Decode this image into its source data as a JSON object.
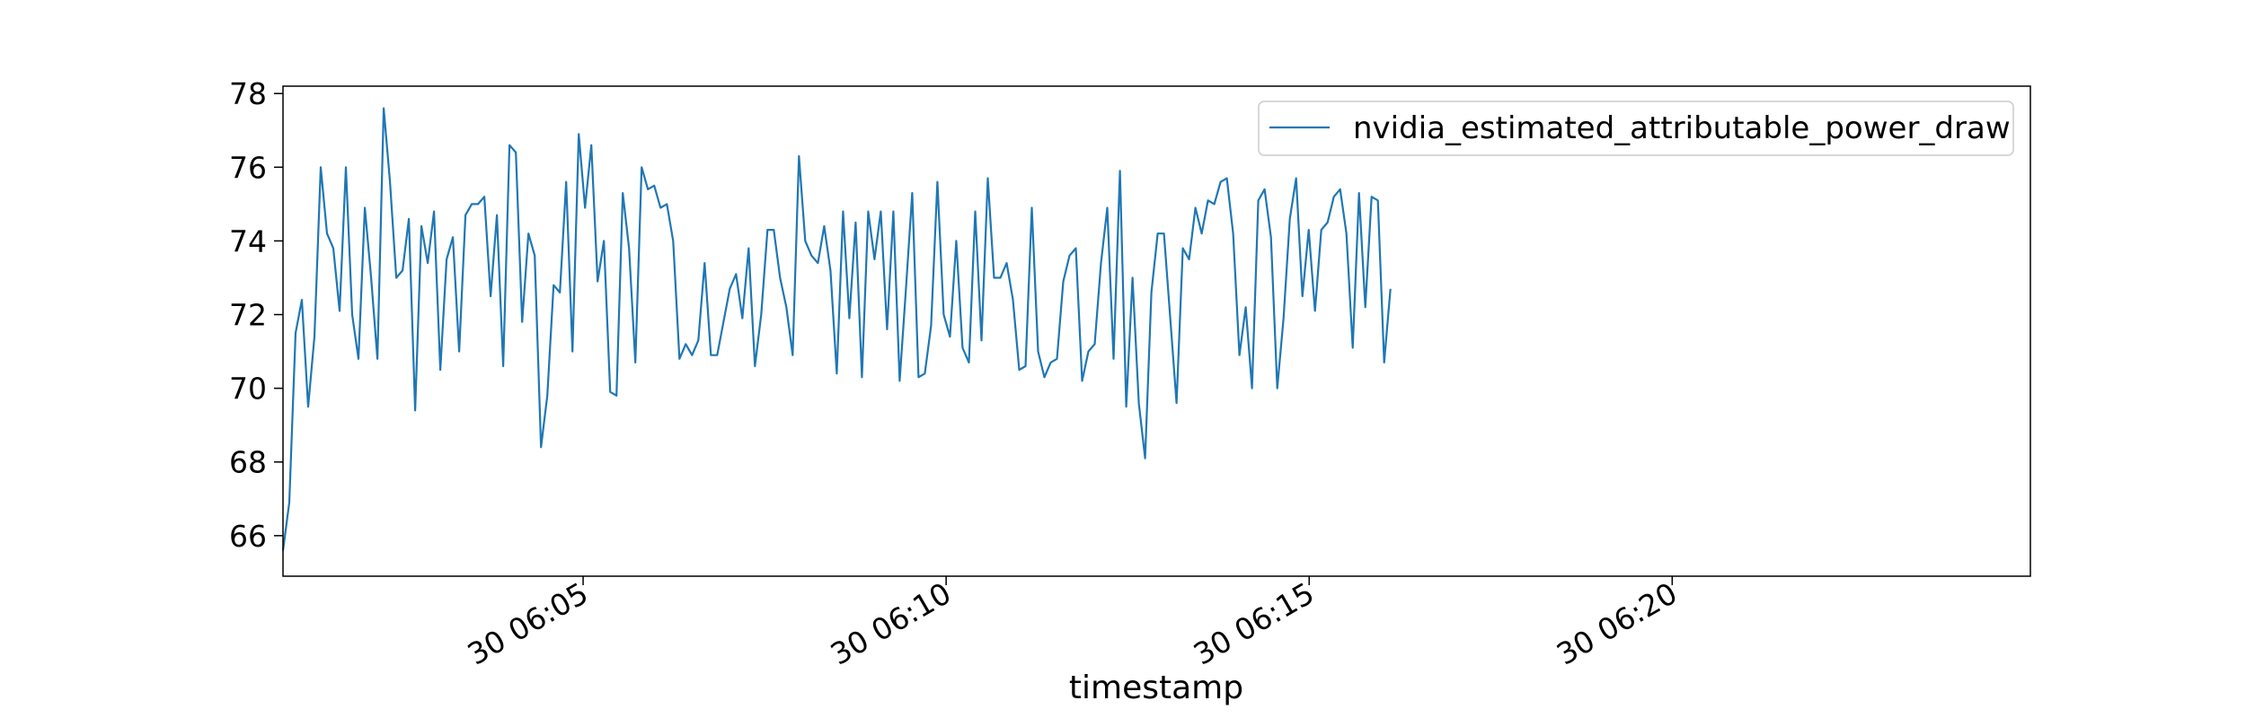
{
  "chart_data": {
    "type": "line",
    "title": "",
    "xlabel": "timestamp",
    "ylabel": "",
    "x_start": "30 06:00:52",
    "x_step_seconds": 5.2,
    "xlim": [
      "30 06:00:52",
      "30 06:24:56"
    ],
    "ylim": [
      64.9,
      78.2
    ],
    "y_ticks": [
      66,
      68,
      70,
      72,
      74,
      76,
      78
    ],
    "x_ticks": [
      {
        "time": "30 06:05",
        "label": "30 06:05"
      },
      {
        "time": "30 06:10",
        "label": "30 06:10"
      },
      {
        "time": "30 06:15",
        "label": "30 06:15"
      },
      {
        "time": "30 06:20",
        "label": "30 06:20"
      }
    ],
    "grid": false,
    "legend_position": "top-right",
    "series": [
      {
        "name": "nvidia_estimated_attributable_power_draw",
        "color": "#1f77b4",
        "values": [
          65.6,
          66.9,
          71.5,
          72.4,
          69.5,
          71.4,
          76.0,
          74.2,
          73.8,
          72.1,
          76.0,
          72.0,
          70.8,
          74.9,
          73.0,
          70.8,
          77.6,
          75.6,
          73.0,
          73.2,
          74.6,
          69.4,
          74.4,
          73.4,
          74.8,
          70.5,
          73.5,
          74.1,
          71.0,
          74.7,
          75.0,
          75.0,
          75.2,
          72.5,
          74.7,
          70.6,
          76.6,
          76.4,
          71.8,
          74.2,
          73.6,
          68.4,
          69.8,
          72.8,
          72.6,
          75.6,
          71.0,
          76.9,
          74.9,
          76.6,
          72.9,
          74.0,
          69.9,
          69.8,
          75.3,
          73.8,
          70.7,
          76.0,
          75.4,
          75.5,
          74.9,
          75.0,
          74.0,
          70.8,
          71.2,
          70.9,
          71.3,
          73.4,
          70.9,
          70.9,
          71.8,
          72.7,
          73.1,
          71.9,
          73.8,
          70.6,
          72.0,
          74.3,
          74.3,
          73.0,
          72.2,
          70.9,
          76.3,
          74.0,
          73.6,
          73.4,
          74.4,
          73.2,
          70.4,
          74.8,
          71.9,
          74.5,
          70.3,
          74.8,
          73.5,
          74.8,
          71.6,
          74.8,
          70.2,
          72.7,
          75.3,
          70.3,
          70.4,
          71.7,
          75.6,
          72.0,
          71.4,
          74.0,
          71.1,
          70.7,
          74.8,
          71.3,
          75.7,
          73.0,
          73.0,
          73.4,
          72.4,
          70.5,
          70.6,
          74.9,
          71.0,
          70.3,
          70.7,
          70.8,
          72.9,
          73.6,
          73.8,
          70.2,
          71.0,
          71.2,
          73.4,
          74.9,
          70.8,
          75.9,
          69.5,
          73.0,
          69.6,
          68.1,
          72.6,
          74.2,
          74.2,
          71.9,
          69.6,
          73.8,
          73.5,
          74.9,
          74.2,
          75.1,
          75.0,
          75.6,
          75.7,
          74.2,
          70.9,
          72.2,
          70.0,
          75.1,
          75.4,
          74.1,
          70.0,
          71.9,
          74.6,
          75.7,
          72.5,
          74.3,
          72.1,
          74.3,
          74.5,
          75.2,
          75.4,
          74.2,
          71.1,
          75.3,
          72.2,
          75.2,
          75.1,
          70.7,
          72.7
        ]
      }
    ]
  }
}
